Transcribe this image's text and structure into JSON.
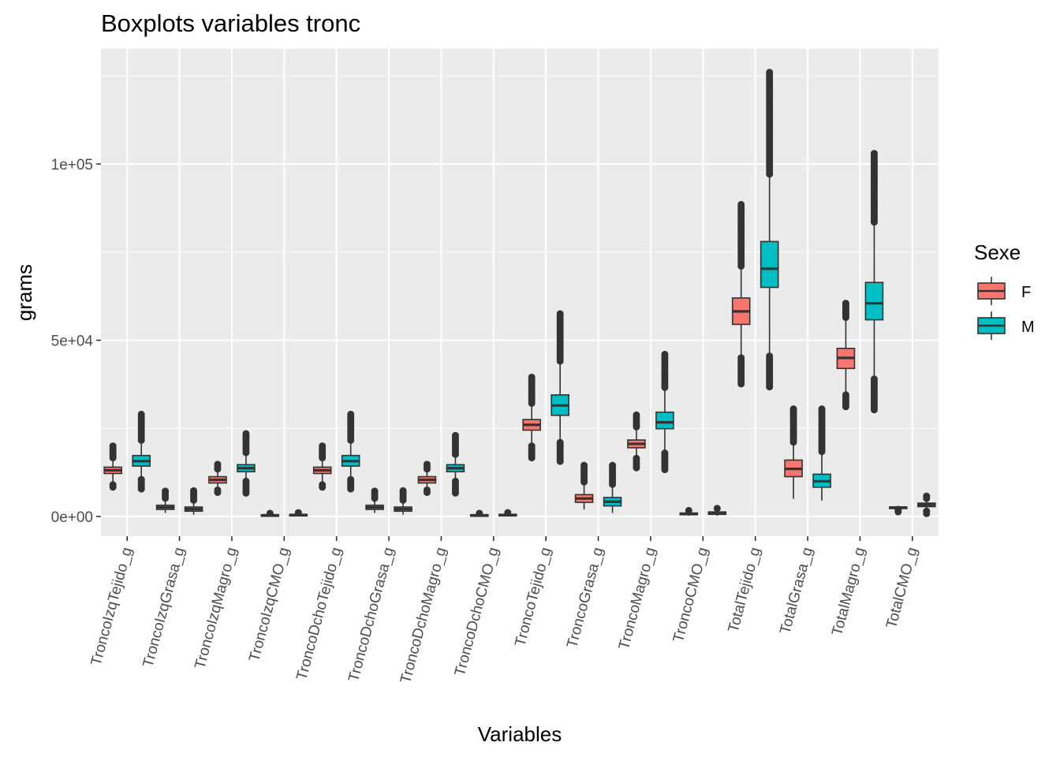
{
  "chart_data": {
    "type": "boxplot",
    "title": "Boxplots variables tronc",
    "xlabel": "Variables",
    "ylabel": "grams",
    "ylim": [
      -5000,
      128000
    ],
    "y_ticks": [
      0,
      50000,
      100000
    ],
    "y_tick_labels": [
      "0e+00",
      "5e+04",
      "1e+05"
    ],
    "grid": true,
    "legend": {
      "title": "Sexe",
      "position": "right",
      "entries": [
        {
          "label": "F",
          "color": "#F8766D"
        },
        {
          "label": "M",
          "color": "#00BFC4"
        }
      ]
    },
    "categories": [
      "TroncoIzqTejido_g",
      "TroncoIzqGrasa_g",
      "TroncoIzqMagro_g",
      "TroncoIzqCMO_g",
      "TroncoDchoTejido_g",
      "TroncoDchoGrasa_g",
      "TroncoDchoMagro_g",
      "TroncoDchoCMO_g",
      "TroncoTejido_g",
      "TroncoGrasa_g",
      "TroncoMagro_g",
      "TroncoCMO_g",
      "TotalTejido_g",
      "TotalGrasa_g",
      "TotalMagro_g",
      "TotalCMO_g"
    ],
    "series": [
      {
        "name": "F",
        "color": "#F8766D",
        "boxes": [
          {
            "q1": 12200,
            "median": 13100,
            "q3": 14000,
            "lower": 9000,
            "upper": 16500,
            "outlier_range": [
              [
                16500,
                20000
              ],
              [
                8200,
                9000
              ]
            ]
          },
          {
            "q1": 2000,
            "median": 2600,
            "q3": 3200,
            "lower": 1000,
            "upper": 5000,
            "outlier_range": [
              [
                5000,
                7200
              ]
            ]
          },
          {
            "q1": 9500,
            "median": 10400,
            "q3": 11300,
            "lower": 7500,
            "upper": 13000,
            "outlier_range": [
              [
                13000,
                14800
              ],
              [
                6800,
                7500
              ]
            ]
          },
          {
            "q1": 200,
            "median": 350,
            "q3": 500,
            "lower": 50,
            "upper": 700,
            "outlier_range": [
              [
                700,
                900
              ]
            ]
          },
          {
            "q1": 12200,
            "median": 13100,
            "q3": 14000,
            "lower": 9000,
            "upper": 16500,
            "outlier_range": [
              [
                16500,
                20000
              ],
              [
                8200,
                9000
              ]
            ]
          },
          {
            "q1": 2000,
            "median": 2600,
            "q3": 3200,
            "lower": 1000,
            "upper": 5000,
            "outlier_range": [
              [
                5000,
                7200
              ]
            ]
          },
          {
            "q1": 9500,
            "median": 10400,
            "q3": 11300,
            "lower": 7500,
            "upper": 13000,
            "outlier_range": [
              [
                13000,
                14800
              ],
              [
                6800,
                7500
              ]
            ]
          },
          {
            "q1": 200,
            "median": 350,
            "q3": 500,
            "lower": 50,
            "upper": 700,
            "outlier_range": [
              [
                700,
                900
              ]
            ]
          },
          {
            "q1": 24500,
            "median": 26000,
            "q3": 27500,
            "lower": 20000,
            "upper": 32000,
            "outlier_range": [
              [
                32000,
                39500
              ],
              [
                16500,
                20000
              ]
            ]
          },
          {
            "q1": 4000,
            "median": 5100,
            "q3": 6200,
            "lower": 2000,
            "upper": 9500,
            "outlier_range": [
              [
                9500,
                14500
              ]
            ]
          },
          {
            "q1": 19500,
            "median": 20600,
            "q3": 21700,
            "lower": 16500,
            "upper": 25000,
            "outlier_range": [
              [
                25000,
                28800
              ],
              [
                13500,
                16500
              ]
            ]
          },
          {
            "q1": 500,
            "median": 750,
            "q3": 1000,
            "lower": 200,
            "upper": 1300,
            "outlier_range": [
              [
                1300,
                1700
              ]
            ]
          },
          {
            "q1": 54500,
            "median": 58200,
            "q3": 62000,
            "lower": 45000,
            "upper": 71000,
            "outlier_range": [
              [
                71000,
                88500
              ],
              [
                37000,
                45000
              ]
            ]
          },
          {
            "q1": 11300,
            "median": 13500,
            "q3": 16000,
            "lower": 5000,
            "upper": 21000,
            "outlier_range": [
              [
                21000,
                30500
              ]
            ]
          },
          {
            "q1": 42000,
            "median": 45000,
            "q3": 47700,
            "lower": 34500,
            "upper": 56000,
            "outlier_range": [
              [
                56000,
                60500
              ],
              [
                31000,
                34500
              ]
            ]
          },
          {
            "q1": 2400,
            "median": 2550,
            "q3": 2700,
            "lower": 2000,
            "upper": 3000,
            "outlier_range": [
              [
                1000,
                2000
              ]
            ]
          }
        ]
      },
      {
        "name": "M",
        "color": "#00BFC4",
        "boxes": [
          {
            "q1": 14300,
            "median": 15700,
            "q3": 17300,
            "lower": 10500,
            "upper": 21500,
            "outlier_range": [
              [
                21500,
                29000
              ],
              [
                7500,
                10500
              ]
            ]
          },
          {
            "q1": 1500,
            "median": 2100,
            "q3": 2700,
            "lower": 500,
            "upper": 4500,
            "outlier_range": [
              [
                4500,
                7300
              ]
            ]
          },
          {
            "q1": 12700,
            "median": 13700,
            "q3": 14700,
            "lower": 10000,
            "upper": 17500,
            "outlier_range": [
              [
                17500,
                23500
              ],
              [
                6500,
                10000
              ]
            ]
          },
          {
            "q1": 300,
            "median": 450,
            "q3": 600,
            "lower": 100,
            "upper": 800,
            "outlier_range": [
              [
                800,
                1100
              ]
            ]
          },
          {
            "q1": 14300,
            "median": 15700,
            "q3": 17300,
            "lower": 10500,
            "upper": 21500,
            "outlier_range": [
              [
                21500,
                29000
              ],
              [
                7500,
                10500
              ]
            ]
          },
          {
            "q1": 1500,
            "median": 2100,
            "q3": 2700,
            "lower": 500,
            "upper": 4500,
            "outlier_range": [
              [
                4500,
                7300
              ]
            ]
          },
          {
            "q1": 12700,
            "median": 13700,
            "q3": 14700,
            "lower": 10000,
            "upper": 17500,
            "outlier_range": [
              [
                17500,
                23000
              ],
              [
                6500,
                10000
              ]
            ]
          },
          {
            "q1": 300,
            "median": 450,
            "q3": 600,
            "lower": 100,
            "upper": 800,
            "outlier_range": [
              [
                800,
                1100
              ]
            ]
          },
          {
            "q1": 28700,
            "median": 31500,
            "q3": 34500,
            "lower": 21000,
            "upper": 43500,
            "outlier_range": [
              [
                43500,
                57500
              ],
              [
                15000,
                21000
              ]
            ]
          },
          {
            "q1": 3000,
            "median": 4200,
            "q3": 5400,
            "lower": 1000,
            "upper": 9000,
            "outlier_range": [
              [
                9000,
                14500
              ]
            ]
          },
          {
            "q1": 24900,
            "median": 26700,
            "q3": 29600,
            "lower": 18000,
            "upper": 36000,
            "outlier_range": [
              [
                36000,
                46000
              ],
              [
                12800,
                18000
              ]
            ]
          },
          {
            "q1": 600,
            "median": 950,
            "q3": 1300,
            "lower": 200,
            "upper": 1800,
            "outlier_range": [
              [
                1800,
                2300
              ]
            ]
          },
          {
            "q1": 65000,
            "median": 70300,
            "q3": 78000,
            "lower": 45500,
            "upper": 96500,
            "outlier_range": [
              [
                96500,
                126000
              ],
              [
                36500,
                45500
              ]
            ]
          },
          {
            "q1": 8300,
            "median": 10000,
            "q3": 12000,
            "lower": 4500,
            "upper": 18000,
            "outlier_range": [
              [
                18000,
                30500
              ]
            ]
          },
          {
            "q1": 55800,
            "median": 60500,
            "q3": 66400,
            "lower": 39000,
            "upper": 83000,
            "outlier_range": [
              [
                83000,
                103000
              ],
              [
                29800,
                39000
              ]
            ]
          },
          {
            "q1": 2800,
            "median": 3300,
            "q3": 3800,
            "lower": 1500,
            "upper": 4500,
            "outlier_range": [
              [
                4500,
                5800
              ],
              [
                800,
                1500
              ]
            ]
          }
        ]
      }
    ]
  }
}
